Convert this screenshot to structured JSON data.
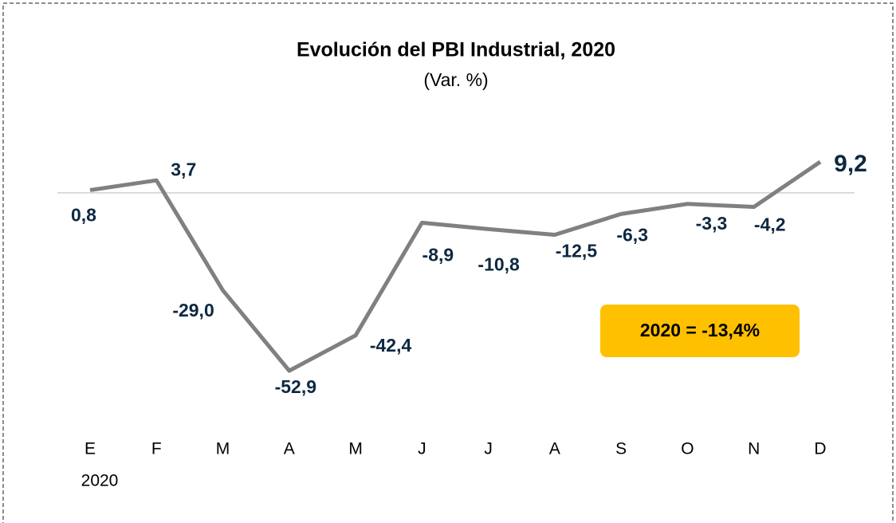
{
  "chart_data": {
    "type": "line",
    "title": "Evolución del PBI Industrial, 2020",
    "subtitle": "(Var. %)",
    "categories": [
      "E",
      "F",
      "M",
      "A",
      "M",
      "J",
      "J",
      "A",
      "S",
      "O",
      "N",
      "D"
    ],
    "year_label": "2020",
    "series": [
      {
        "name": "PBI Industrial",
        "color": "#808080",
        "values": [
          0.8,
          3.7,
          -29.0,
          -52.9,
          -42.4,
          -8.9,
          -10.8,
          -12.5,
          -6.3,
          -3.3,
          -4.2,
          9.2
        ],
        "value_labels": [
          "0,8",
          "3,7",
          "-29,0",
          "-52,9",
          "-42,4",
          "-8,9",
          "-10,8",
          "-12,5",
          "-6,3",
          "-3,3",
          "-4,2",
          "9,2"
        ]
      }
    ],
    "annotation": "2020 = -13,4%",
    "annotation_color": "#FFC000"
  }
}
